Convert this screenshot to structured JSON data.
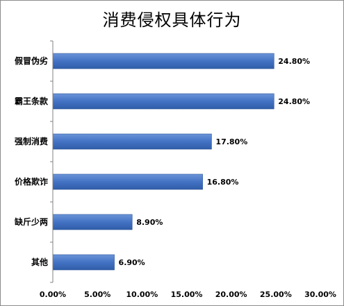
{
  "chart_data": {
    "type": "bar",
    "orientation": "horizontal",
    "title": "消费侵权具体行为",
    "categories": [
      "假冒伪劣",
      "霸王条款",
      "强制消费",
      "价格欺诈",
      "缺斤少两",
      "其他"
    ],
    "values": [
      24.8,
      24.8,
      17.8,
      16.8,
      8.9,
      6.9
    ],
    "value_labels": [
      "24.80%",
      "24.80%",
      "17.80%",
      "16.80%",
      "8.90%",
      "6.90%"
    ],
    "xlim": [
      0,
      30
    ],
    "xticks": [
      0,
      5,
      10,
      15,
      20,
      25,
      30
    ],
    "xtick_labels": [
      "0.00%",
      "5.00%",
      "10.00%",
      "15.00%",
      "20.00%",
      "25.00%",
      "30.00%"
    ],
    "xlabel": "",
    "ylabel": "",
    "grid": false,
    "legend": "none",
    "bar_color": "#4472c4",
    "bar_edge_color": "#2f5597"
  }
}
